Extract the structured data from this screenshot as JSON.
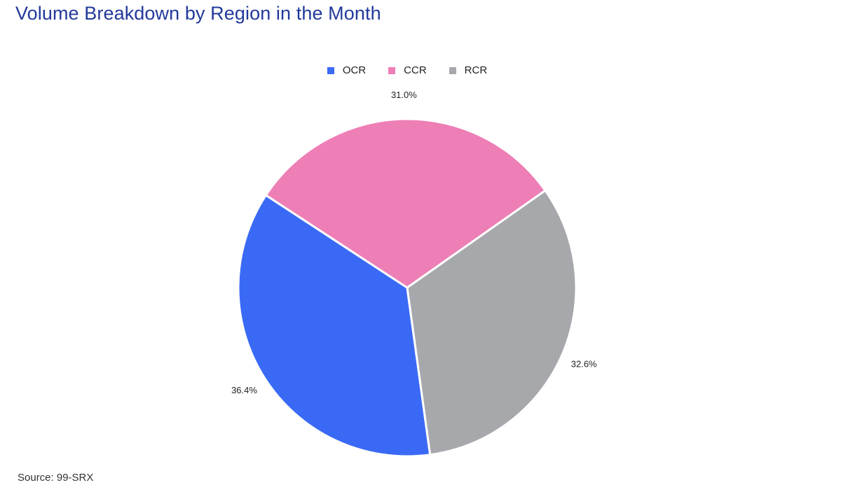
{
  "title": "Volume Breakdown by Region in the Month",
  "source": "Source: 99-SRX",
  "chart_data": {
    "type": "pie",
    "title": "Volume Breakdown by Region in the Month",
    "legend_position": "top",
    "categories": [
      "OCR",
      "CCR",
      "RCR"
    ],
    "values": [
      36.4,
      31.0,
      32.6
    ],
    "labels": [
      "36.4%",
      "31.0%",
      "32.6%"
    ],
    "colors": [
      "#3a6af5",
      "#ee7eb6",
      "#a7a8ab"
    ]
  }
}
